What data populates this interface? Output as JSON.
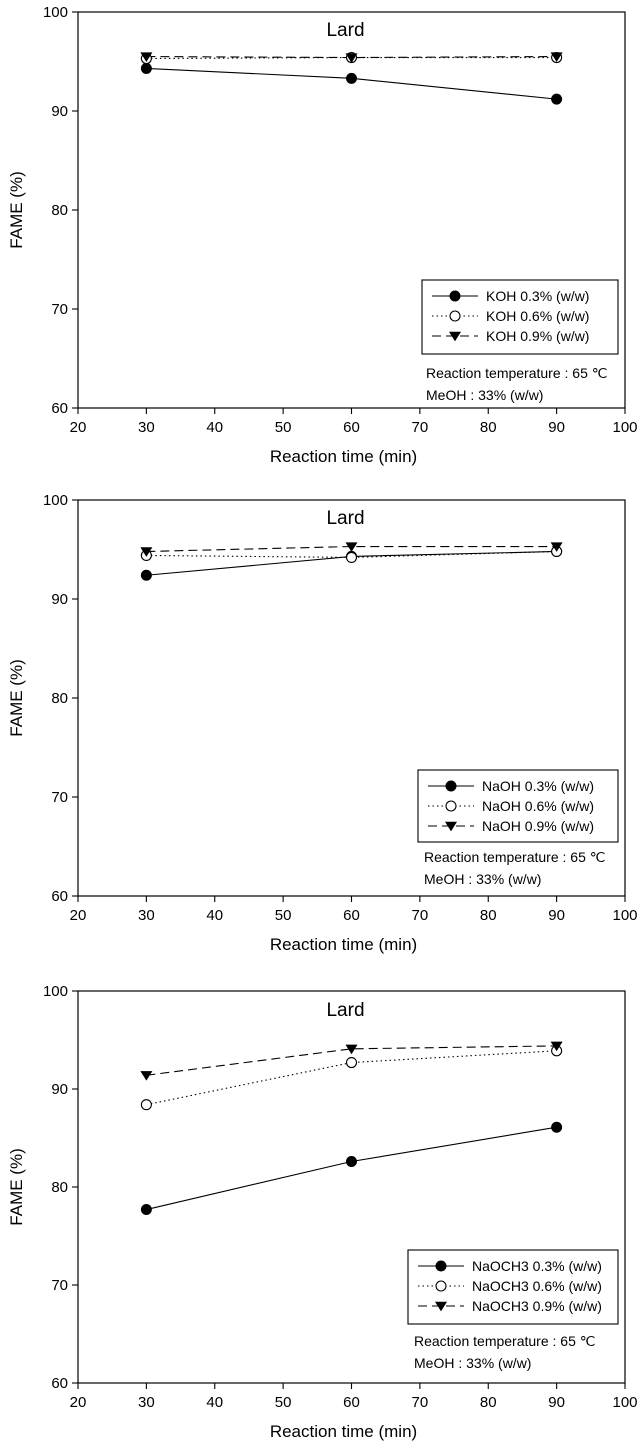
{
  "chart_data": [
    {
      "type": "line",
      "title": "Lard",
      "xlabel": "Reaction time (min)",
      "ylabel": "FAME (%)",
      "xlim": [
        20,
        100
      ],
      "ylim": [
        60,
        100
      ],
      "xticks": [
        20,
        30,
        40,
        50,
        60,
        70,
        80,
        90,
        100
      ],
      "yticks": [
        60,
        70,
        80,
        90,
        100
      ],
      "x": [
        30,
        60,
        90
      ],
      "grid": false,
      "legend_position": "lower-right",
      "series": [
        {
          "name": "KOH 0.3% (w/w)",
          "values": [
            94.3,
            93.3,
            91.2
          ],
          "marker": "filled-circle",
          "linestyle": "solid"
        },
        {
          "name": "KOH 0.6%  (w/w)",
          "values": [
            95.3,
            95.4,
            95.4
          ],
          "marker": "open-circle",
          "linestyle": "dotted"
        },
        {
          "name": "KOH 0.9%  (w/w)",
          "values": [
            95.5,
            95.4,
            95.5
          ],
          "marker": "filled-triangle-down",
          "linestyle": "dashed"
        }
      ],
      "annotations": [
        "Reaction temperature : 65 ℃",
        "MeOH : 33% (w/w)"
      ]
    },
    {
      "type": "line",
      "title": "Lard",
      "xlabel": "Reaction time (min)",
      "ylabel": "FAME (%)",
      "xlim": [
        20,
        100
      ],
      "ylim": [
        60,
        100
      ],
      "xticks": [
        20,
        30,
        40,
        50,
        60,
        70,
        80,
        90,
        100
      ],
      "yticks": [
        60,
        70,
        80,
        90,
        100
      ],
      "x": [
        30,
        60,
        90
      ],
      "grid": false,
      "legend_position": "lower-right",
      "series": [
        {
          "name": "NaOH 0.3% (w/w)",
          "values": [
            92.4,
            94.3,
            94.8
          ],
          "marker": "filled-circle",
          "linestyle": "solid"
        },
        {
          "name": "NaOH 0.6% (w/w)",
          "values": [
            94.4,
            94.2,
            94.8
          ],
          "marker": "open-circle",
          "linestyle": "dotted"
        },
        {
          "name": "NaOH 0.9% (w/w)",
          "values": [
            94.8,
            95.3,
            95.3
          ],
          "marker": "filled-triangle-down",
          "linestyle": "dashed"
        }
      ],
      "annotations": [
        "Reaction temperature : 65 ℃",
        "MeOH : 33% (w/w)"
      ]
    },
    {
      "type": "line",
      "title": "Lard",
      "xlabel": "Reaction time (min)",
      "ylabel": "FAME (%)",
      "xlim": [
        20,
        100
      ],
      "ylim": [
        60,
        100
      ],
      "xticks": [
        20,
        30,
        40,
        50,
        60,
        70,
        80,
        90,
        100
      ],
      "yticks": [
        60,
        70,
        80,
        90,
        100
      ],
      "x": [
        30,
        60,
        90
      ],
      "grid": false,
      "legend_position": "lower-right",
      "series": [
        {
          "name": "NaOCH3 0.3% (w/w)",
          "values": [
            77.7,
            82.6,
            86.1
          ],
          "marker": "filled-circle",
          "linestyle": "solid"
        },
        {
          "name": "NaOCH3 0.6% (w/w)",
          "values": [
            88.4,
            92.7,
            93.9
          ],
          "marker": "open-circle",
          "linestyle": "dotted"
        },
        {
          "name": "NaOCH3 0.9% (w/w)",
          "values": [
            91.4,
            94.1,
            94.4
          ],
          "marker": "filled-triangle-down",
          "linestyle": "dashed"
        }
      ],
      "annotations": [
        "Reaction temperature : 65 ℃",
        "MeOH : 33% (w/w)"
      ]
    }
  ]
}
